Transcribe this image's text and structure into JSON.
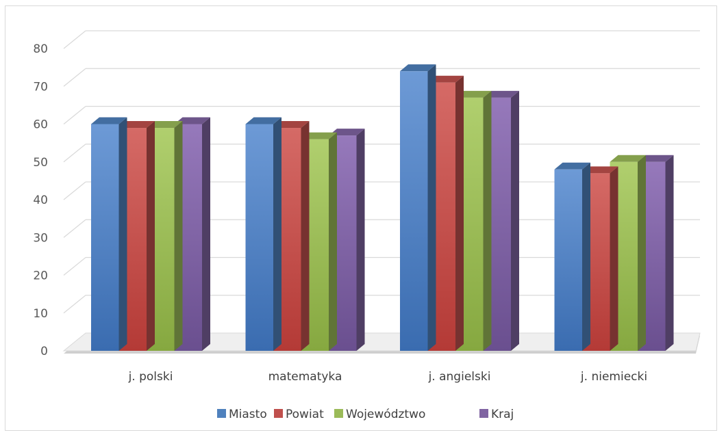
{
  "chart_data": {
    "type": "bar",
    "style": "3d-clustered-column",
    "categories": [
      "j. polski",
      "matematyka",
      "j. angielski",
      "j. niemiecki"
    ],
    "series": [
      {
        "name": "Miasto",
        "color": "#4f81bd",
        "values": [
          60,
          60,
          74,
          48
        ]
      },
      {
        "name": "Powiat",
        "color": "#c0504d",
        "values": [
          59,
          59,
          71,
          47
        ]
      },
      {
        "name": "Województwo",
        "color": "#9bbb59",
        "values": [
          59,
          56,
          67,
          50
        ]
      },
      {
        "name": "Kraj",
        "color": "#8064a2",
        "values": [
          60,
          57,
          67,
          50
        ]
      }
    ],
    "yticks": [
      0,
      10,
      20,
      30,
      40,
      50,
      60,
      70,
      80
    ],
    "ylim": [
      0,
      80
    ],
    "grid": true,
    "legend": "bottom",
    "title": "",
    "xlabel": "",
    "ylabel": ""
  }
}
